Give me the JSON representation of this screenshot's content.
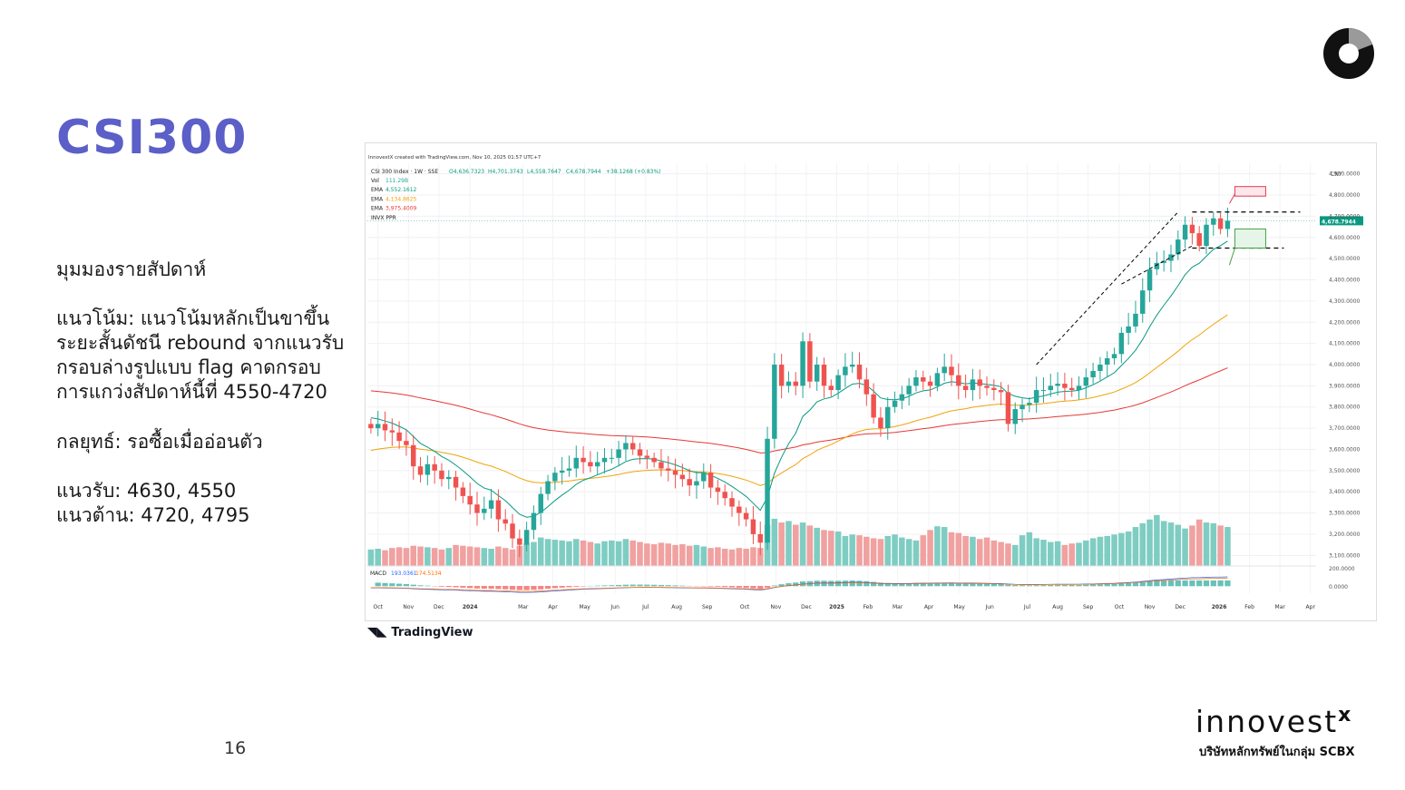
{
  "slide": {
    "title": "CSI300",
    "subtitle": "มุมมองรายสัปดาห์",
    "trend_lines": [
      "แนวโน้ม: แนวโน้มหลักเป็นขาขึ้น",
      "ระยะสั้นดัชนี rebound จากแนวรับ",
      "กรอบล่างรูปแบบ flag คาดกรอบ",
      "การแกว่งสัปดาห์นี้ที่ 4550-4720"
    ],
    "strategy": "กลยุทธ์: รอซื้อเมื่ออ่อนตัว",
    "support": "แนวรับ: 4630, 4550",
    "resistance": "แนวต้าน: 4720, 4795",
    "page_number": "16"
  },
  "brand": {
    "name": "innovest",
    "mark": "x",
    "tagline": "บริษัทหลักทรัพย์ในกลุ่ม SCBX"
  },
  "chart_data": {
    "type": "candlestick",
    "watermark": "InnovestX created with TradingView.com, Nov 10, 2025 01:57 UTC+7",
    "symbol_line": "CSI 300 Index · 1W · SSE",
    "ohlc_text": {
      "open": "O4,636.7323",
      "high": "H4,701.3743",
      "low": "L4,558.7647",
      "close": "C4,678.7944",
      "change": "+38.1268 (+0.83%)"
    },
    "indicators": [
      {
        "label": "Vol",
        "value": "111.29B",
        "color": "#26a69a"
      },
      {
        "label": "EMA",
        "value": "4,552.1612",
        "color": "#089981"
      },
      {
        "label": "EMA",
        "value": "4,134.8625",
        "color": "#f0a30a"
      },
      {
        "label": "EMA",
        "value": "3,975.4009",
        "color": "#e53935"
      },
      {
        "label": "INVX PPR",
        "value": "",
        "color": "#555555"
      }
    ],
    "currency": "CNY",
    "price_ticks": [
      "4,900.0000",
      "4,800.0000",
      "4,700.0000",
      "4,600.0000",
      "4,500.0000",
      "4,400.0000",
      "4,300.0000",
      "4,200.0000",
      "4,100.0000",
      "4,000.0000",
      "3,900.0000",
      "3,800.0000",
      "3,700.0000",
      "3,600.0000",
      "3,500.0000",
      "3,400.0000",
      "3,300.0000",
      "3,200.0000",
      "3,100.0000"
    ],
    "price_tick_values": [
      4900,
      4800,
      4700,
      4600,
      4500,
      4400,
      4300,
      4200,
      4100,
      4000,
      3900,
      3800,
      3700,
      3600,
      3500,
      3400,
      3300,
      3200,
      3100
    ],
    "last_price_label": "4,678.7944",
    "last_price": 4678.79,
    "y_range": [
      3050,
      4950
    ],
    "months": [
      "Oct",
      "Nov",
      "Dec",
      "2024",
      "Mar",
      "Apr",
      "May",
      "Jun",
      "Jul",
      "Aug",
      "Sep",
      "Oct",
      "Nov",
      "Dec",
      "2025",
      "Feb",
      "Mar",
      "Apr",
      "May",
      "Jun",
      "Jul",
      "Aug",
      "Sep",
      "Oct",
      "Nov",
      "Dec",
      "2026",
      "Feb",
      "Mar",
      "Apr"
    ],
    "month_index": [
      1,
      5.3,
      9.6,
      14,
      21.5,
      25.7,
      30.2,
      34.5,
      38.8,
      43.2,
      47.5,
      52.8,
      57.2,
      61.5,
      65.8,
      70.2,
      74.4,
      78.8,
      83.1,
      87.4,
      92.7,
      97,
      101.3,
      105.7,
      110,
      114.3,
      119.8,
      124.1,
      128.4,
      132.7
    ],
    "weekly_closes": [
      3700,
      3720,
      3690,
      3680,
      3640,
      3620,
      3520,
      3480,
      3530,
      3500,
      3460,
      3470,
      3420,
      3380,
      3340,
      3300,
      3320,
      3360,
      3270,
      3250,
      3180,
      3150,
      3220,
      3300,
      3390,
      3450,
      3490,
      3500,
      3510,
      3560,
      3540,
      3520,
      3540,
      3560,
      3560,
      3600,
      3630,
      3600,
      3570,
      3560,
      3540,
      3510,
      3500,
      3480,
      3460,
      3430,
      3450,
      3490,
      3420,
      3400,
      3370,
      3330,
      3300,
      3270,
      3200,
      3160,
      3650,
      4000,
      3900,
      3920,
      3900,
      4110,
      3920,
      4000,
      3900,
      3880,
      3950,
      3990,
      4000,
      3930,
      3860,
      3750,
      3700,
      3800,
      3830,
      3860,
      3900,
      3940,
      3920,
      3900,
      3960,
      3990,
      3950,
      3900,
      3880,
      3930,
      3900,
      3890,
      3880,
      3870,
      3720,
      3790,
      3810,
      3820,
      3880,
      3880,
      3900,
      3910,
      3890,
      3880,
      3900,
      3940,
      3970,
      4000,
      4030,
      4050,
      4150,
      4180,
      4240,
      4350,
      4450,
      4480,
      4490,
      4520,
      4590,
      4660,
      4620,
      4560,
      4660,
      4690,
      4640,
      4678.79
    ],
    "ema_fast_last": 4552.16,
    "ema_mid_last": 4134.86,
    "ema_slow_last": 3975.4,
    "volume_scale_max": 115,
    "volume": [
      22,
      23,
      21,
      24,
      25,
      24,
      27,
      26,
      25,
      24,
      22,
      24,
      28,
      27,
      26,
      25,
      24,
      23,
      26,
      24,
      22,
      27,
      30,
      32,
      38,
      36,
      35,
      34,
      33,
      36,
      34,
      32,
      30,
      33,
      34,
      33,
      36,
      34,
      32,
      30,
      29,
      31,
      30,
      28,
      29,
      27,
      28,
      26,
      24,
      25,
      23,
      22,
      24,
      23,
      25,
      24,
      55,
      63,
      58,
      60,
      55,
      58,
      54,
      51,
      48,
      47,
      46,
      40,
      42,
      41,
      39,
      37,
      36,
      40,
      42,
      38,
      36,
      34,
      41,
      48,
      53,
      52,
      45,
      44,
      40,
      39,
      36,
      38,
      34,
      32,
      30,
      28,
      41,
      45,
      37,
      35,
      32,
      33,
      28,
      30,
      31,
      34,
      37,
      39,
      40,
      42,
      44,
      46,
      52,
      57,
      62,
      68,
      60,
      58,
      55,
      50,
      54,
      62,
      58,
      57,
      54,
      52
    ],
    "macd_label": "MACD",
    "macd_values": [
      "193.0361",
      "174.5134"
    ],
    "levels": [
      {
        "price": 4720,
        "style": "dashed",
        "color": "#000000"
      },
      {
        "price": 4550,
        "style": "dashed",
        "color": "#000000"
      }
    ],
    "target_zone_upper": [
      4795,
      4840
    ],
    "target_zone_lower": [
      4550,
      4640
    ],
    "colors": {
      "up": "#26a69a",
      "down": "#ef5350",
      "vol_up": "#7fcdc2",
      "vol_down": "#f0a1a0",
      "ema_fast": "#089981",
      "ema_mid": "#f0a30a",
      "ema_slow": "#e53935"
    },
    "brand": "TradingView"
  }
}
